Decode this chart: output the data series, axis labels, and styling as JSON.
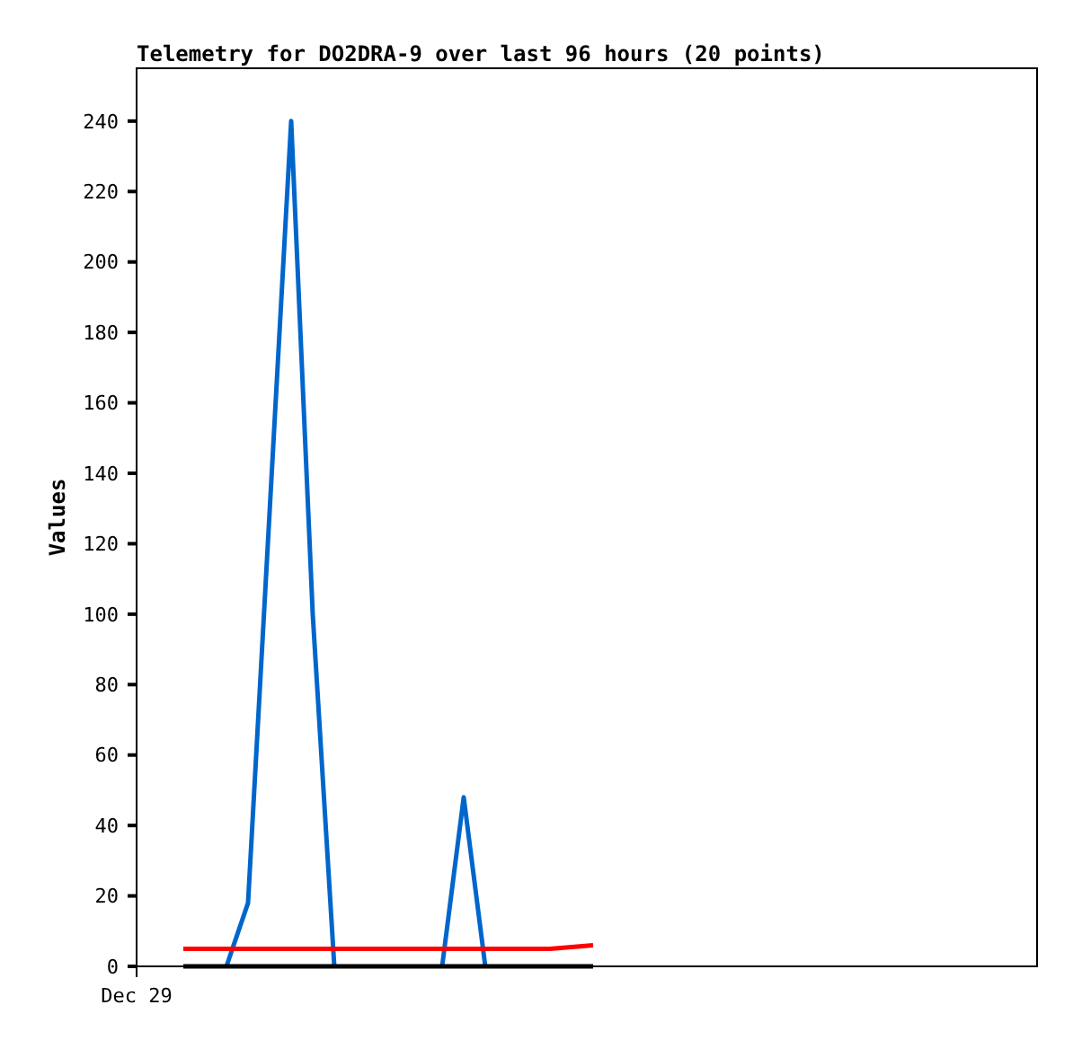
{
  "chart_data": {
    "type": "line",
    "title": "Telemetry for DO2DRA-9 over last 96 hours (20 points)",
    "ylabel": "Values",
    "categories": [
      null,
      null,
      null,
      null,
      null,
      null,
      null,
      null,
      null,
      null,
      null,
      null,
      null,
      null,
      null,
      null,
      null,
      null,
      null,
      null
    ],
    "annotations": [
      "Dec 29"
    ],
    "ylim": [
      0,
      255
    ],
    "yticks": [
      0,
      20,
      40,
      60,
      80,
      100,
      120,
      140,
      160,
      180,
      200,
      220,
      240
    ],
    "series": [
      {
        "color": "#0066cc",
        "values": [
          null,
          null,
          0,
          18,
          129,
          240,
          100,
          0,
          null,
          null,
          null,
          null,
          0,
          48,
          0,
          null,
          null,
          null,
          null,
          null
        ]
      },
      {
        "color": "#ff0000",
        "values": [
          5,
          5,
          5,
          5,
          5,
          5,
          5,
          5,
          5,
          5,
          5,
          5,
          5,
          5,
          5,
          5,
          5,
          5,
          5.5,
          6
        ]
      },
      {
        "color": "#000000",
        "values": [
          0,
          0,
          0,
          0,
          0,
          0,
          0,
          0,
          0,
          0,
          0,
          0,
          0,
          0,
          0,
          0,
          0,
          0,
          0,
          0
        ]
      }
    ],
    "marker": "none",
    "line_style": "solid"
  }
}
